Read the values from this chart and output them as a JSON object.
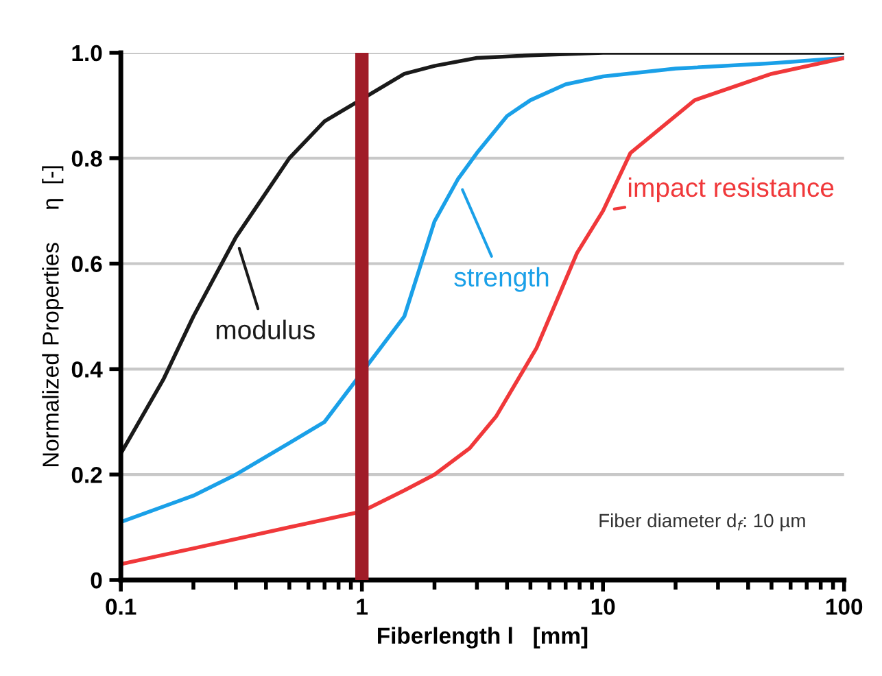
{
  "chart_data": {
    "type": "line",
    "xlabel": "Fiberlength l   [mm]",
    "ylabel": "Normalized Properties     η  [-]",
    "log": "x",
    "xlim": [
      0.1,
      100
    ],
    "xticks": [
      0.1,
      1,
      10,
      100
    ],
    "ylim": [
      0,
      1
    ],
    "yticks": [
      0,
      0.2,
      0.4,
      0.6,
      0.8,
      {
        "value": 1,
        "label": "1.0"
      }
    ],
    "grid": "y",
    "marker": "none",
    "line_style": "solid",
    "series": [
      {
        "name": "modulus",
        "color": "#1a1a1a",
        "x": [
          0.1,
          0.15,
          0.2,
          0.3,
          0.5,
          0.7,
          1.5,
          2,
          3,
          5,
          10,
          100
        ],
        "values": [
          0.24,
          0.38,
          0.5,
          0.65,
          0.8,
          0.87,
          0.96,
          0.975,
          0.99,
          0.995,
          1.0,
          1.0
        ]
      },
      {
        "name": "strength",
        "color": "#1aa0e8",
        "x": [
          0.1,
          0.2,
          0.3,
          0.5,
          0.7,
          1.5,
          2,
          2.5,
          3,
          4,
          5,
          7,
          10,
          20,
          50,
          100
        ],
        "values": [
          0.11,
          0.16,
          0.2,
          0.26,
          0.3,
          0.5,
          0.68,
          0.76,
          0.81,
          0.88,
          0.91,
          0.94,
          0.955,
          0.97,
          0.98,
          0.99
        ]
      },
      {
        "name": "impact resistance",
        "color": "#f0383a",
        "x": [
          0.1,
          0.2,
          0.5,
          1,
          1.5,
          2,
          2.8,
          3.6,
          5.3,
          7.8,
          10,
          13,
          24,
          50,
          100
        ],
        "values": [
          0.03,
          0.06,
          0.1,
          0.13,
          0.17,
          0.2,
          0.25,
          0.31,
          0.44,
          0.62,
          0.7,
          0.81,
          0.91,
          0.96,
          0.99
        ]
      }
    ],
    "ref_lines": [
      {
        "axis": "x",
        "value": 1,
        "color": "#a01c28"
      }
    ],
    "annotations": [
      "Fiber diameter d$_{f}$: 10 µm"
    ]
  }
}
